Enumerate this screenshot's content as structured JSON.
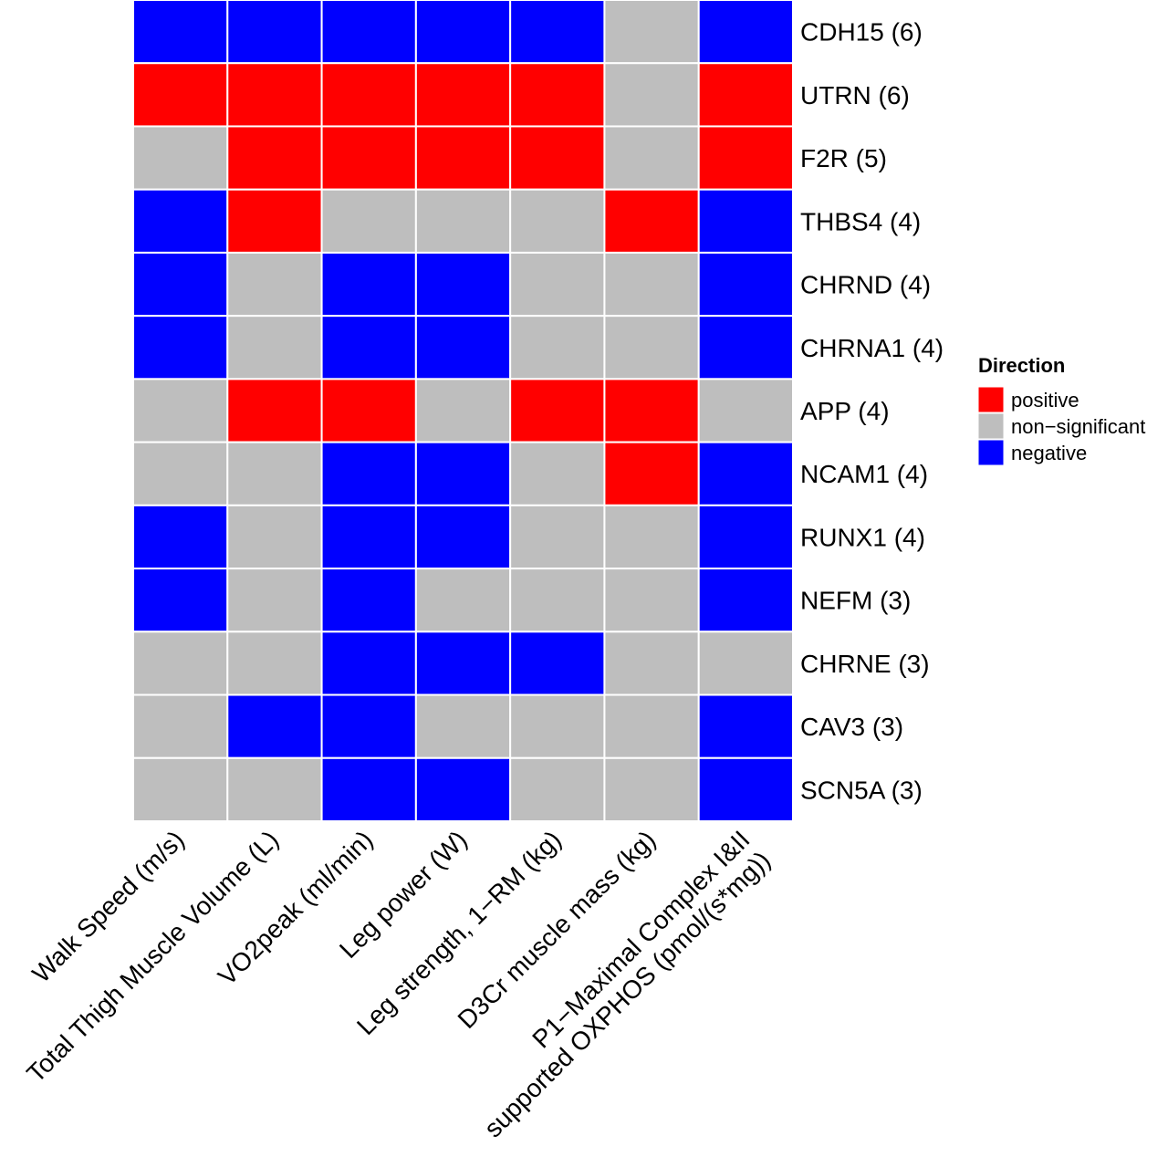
{
  "chart_data": {
    "type": "heatmap",
    "rows": [
      "CDH15 (6)",
      "UTRN (6)",
      "F2R (5)",
      "THBS4 (4)",
      "CHRND (4)",
      "CHRNA1 (4)",
      "APP (4)",
      "NCAM1 (4)",
      "RUNX1 (4)",
      "NEFM (3)",
      "CHRNE (3)",
      "CAV3 (3)",
      "SCN5A (3)"
    ],
    "columns": [
      [
        "Walk Speed (m/s)"
      ],
      [
        "Total Thigh Muscle Volume (L)"
      ],
      [
        "VO2peak (ml/min)"
      ],
      [
        "Leg power (W)"
      ],
      [
        "Leg strength, 1−RM (kg)"
      ],
      [
        "D3Cr muscle mass (kg)"
      ],
      [
        "P1−Maximal Complex I&II",
        "supported OXPHOS (pmol/(s*mg))"
      ]
    ],
    "cells": [
      [
        "negative",
        "negative",
        "negative",
        "negative",
        "negative",
        "non-significant",
        "negative"
      ],
      [
        "positive",
        "positive",
        "positive",
        "positive",
        "positive",
        "non-significant",
        "positive"
      ],
      [
        "non-significant",
        "positive",
        "positive",
        "positive",
        "positive",
        "non-significant",
        "positive"
      ],
      [
        "negative",
        "positive",
        "non-significant",
        "non-significant",
        "non-significant",
        "positive",
        "negative"
      ],
      [
        "negative",
        "non-significant",
        "negative",
        "negative",
        "non-significant",
        "non-significant",
        "negative"
      ],
      [
        "negative",
        "non-significant",
        "negative",
        "negative",
        "non-significant",
        "non-significant",
        "negative"
      ],
      [
        "non-significant",
        "positive",
        "positive",
        "non-significant",
        "positive",
        "positive",
        "non-significant"
      ],
      [
        "non-significant",
        "non-significant",
        "negative",
        "negative",
        "non-significant",
        "positive",
        "negative"
      ],
      [
        "negative",
        "non-significant",
        "negative",
        "negative",
        "non-significant",
        "non-significant",
        "negative"
      ],
      [
        "negative",
        "non-significant",
        "negative",
        "non-significant",
        "non-significant",
        "non-significant",
        "negative"
      ],
      [
        "non-significant",
        "non-significant",
        "negative",
        "negative",
        "negative",
        "non-significant",
        "non-significant"
      ],
      [
        "non-significant",
        "negative",
        "negative",
        "non-significant",
        "non-significant",
        "non-significant",
        "negative"
      ],
      [
        "non-significant",
        "non-significant",
        "negative",
        "negative",
        "non-significant",
        "non-significant",
        "negative"
      ]
    ],
    "legend": {
      "title": "Direction",
      "placement": "right",
      "entries": [
        {
          "key": "positive",
          "label": "positive",
          "color": "#ff0000"
        },
        {
          "key": "non-significant",
          "label": "non−significant",
          "color": "#bebebe"
        },
        {
          "key": "negative",
          "label": "negative",
          "color": "#0000ff"
        }
      ]
    },
    "grid_line_color": "#ffffff"
  }
}
